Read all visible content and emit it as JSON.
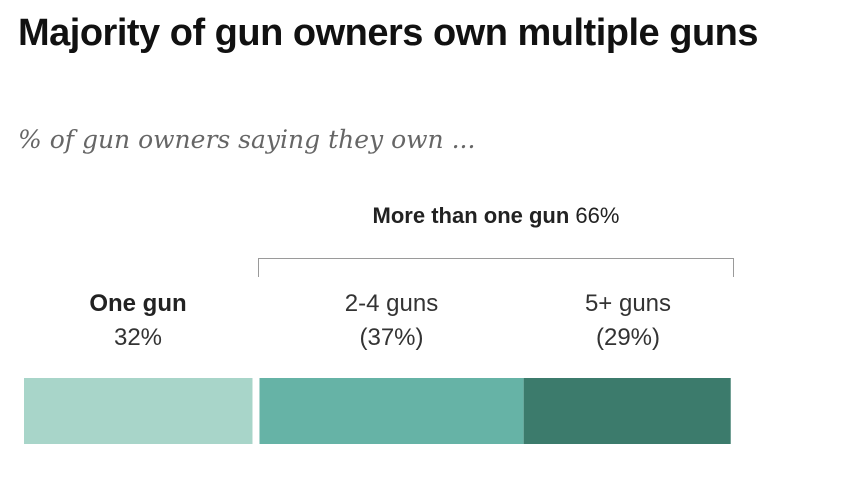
{
  "title": "Majority of gun owners own multiple guns",
  "subtitle": "% of gun owners saying they own ...",
  "group": {
    "name": "More than one gun",
    "value": "66%"
  },
  "labels": [
    {
      "name": "One gun",
      "value": "32%"
    },
    {
      "name": "2-4 guns",
      "value": "(37%)"
    },
    {
      "name": "5+ guns",
      "value": "(29%)"
    }
  ],
  "chart_data": {
    "type": "bar",
    "orientation": "horizontal-stacked",
    "categories": [
      "One gun",
      "2-4 guns",
      "5+ guns"
    ],
    "values": [
      32,
      37,
      29
    ],
    "colors": [
      "#a8d5c9",
      "#66b3a6",
      "#3c7b6c"
    ],
    "group": {
      "name": "More than one gun",
      "members": [
        "2-4 guns",
        "5+ guns"
      ],
      "value": 66
    },
    "title": "Majority of gun owners own multiple guns",
    "subtitle": "% of gun owners saying they own ...",
    "xlabel": "",
    "ylabel": "",
    "legend": "none",
    "grid": false
  }
}
